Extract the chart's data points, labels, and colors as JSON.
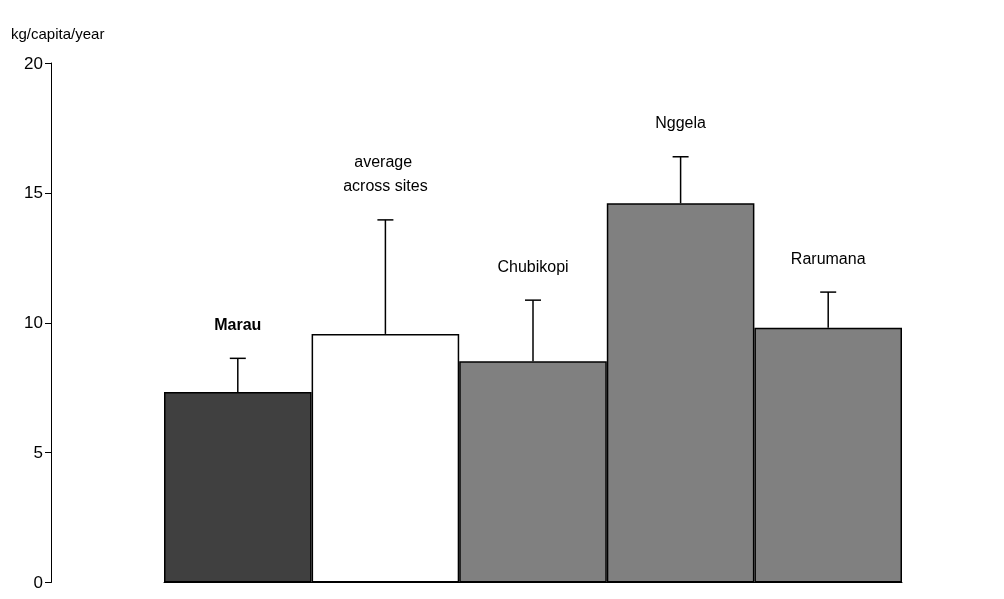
{
  "chart_data": {
    "type": "bar",
    "ylabel": "kg/capita/year",
    "categories": [
      "Marau",
      "average across sites",
      "Chubikopi",
      "Nggela",
      "Rarumana"
    ],
    "values": [
      7.33,
      9.57,
      8.52,
      14.6,
      9.81
    ],
    "errors": [
      [
        7.33,
        8.63
      ],
      [
        9.57,
        13.96
      ],
      [
        8.52,
        10.87
      ],
      [
        14.6,
        16.39
      ],
      [
        9.81,
        11.18
      ]
    ],
    "colors": [
      "#404040",
      "#ffffff",
      "#808080",
      "#808080",
      "#808080"
    ],
    "ylim": [
      0,
      20
    ],
    "yticks": [
      0,
      5,
      10,
      15,
      20
    ]
  }
}
